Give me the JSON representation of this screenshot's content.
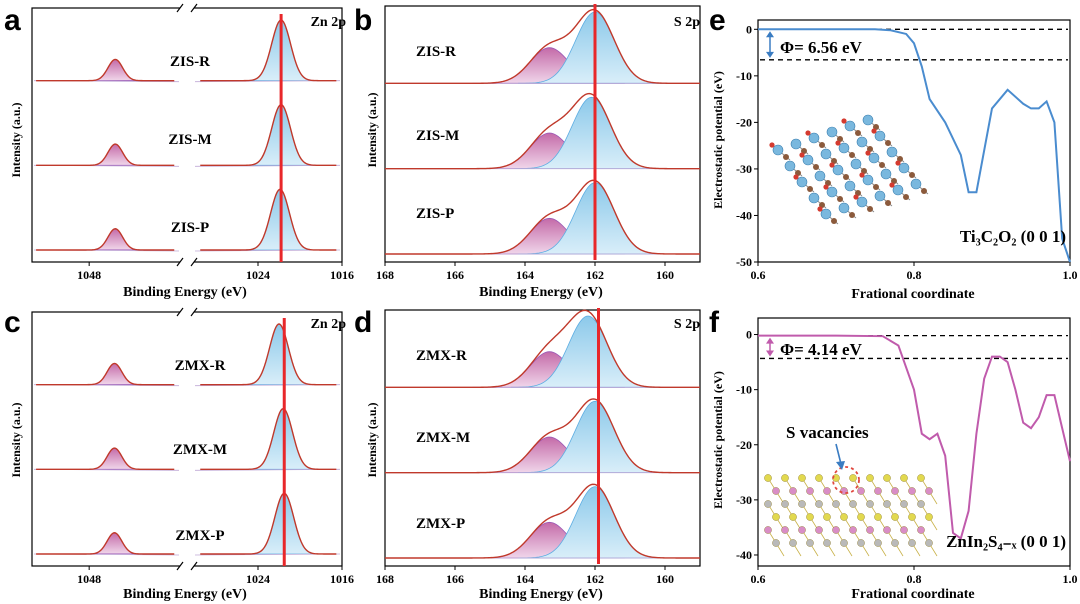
{
  "panels": {
    "a": {
      "label": "a",
      "corner": "Zn 2p",
      "samples": [
        "ZIS-R",
        "ZIS-M",
        "ZIS-P"
      ]
    },
    "b": {
      "label": "b",
      "corner": "S 2p",
      "samples": [
        "ZIS-R",
        "ZIS-M",
        "ZIS-P"
      ]
    },
    "c": {
      "label": "c",
      "corner": "Zn 2p",
      "samples": [
        "ZMX-R",
        "ZMX-M",
        "ZMX-P"
      ]
    },
    "d": {
      "label": "d",
      "corner": "S 2p",
      "samples": [
        "ZMX-R",
        "ZMX-M",
        "ZMX-P"
      ]
    },
    "e": {
      "label": "e"
    },
    "f": {
      "label": "f"
    }
  },
  "xps_axes": {
    "ylabel": "Intensity (a.u.)",
    "xlabel": "Binding Energy (eV)",
    "zn_ticks": [
      "1048",
      "1024",
      "1016"
    ],
    "s_ticks": [
      "168",
      "166",
      "164",
      "162",
      "160"
    ]
  },
  "potential_axes": {
    "ylabel": "Electrostatic potential (eV)",
    "xlabel": "Frational coordinate",
    "xticks": [
      "0.6",
      "0.8",
      "1.0"
    ],
    "yticks": [
      "0",
      "-10",
      "-20",
      "-30",
      "-40",
      "-50"
    ]
  },
  "annotations": {
    "e_phi": "Φ= 6.56 eV",
    "f_phi": "Φ= 4.14 eV",
    "e_struct": "Ti₃C₂O₂ (0 0 1)",
    "f_struct": "ZnIn₂S₄₋ₓ (0 0 1)",
    "s_vacancies": "S vacancies"
  },
  "colors": {
    "fit_line": "#c0392b",
    "reference_line": "#e8272a",
    "zn_main_fill": "#7ec4e6",
    "zn_sat_fill": "#c46aa8",
    "e_curve": "#4a8ccf",
    "f_curve": "#c05bac",
    "phi_arrow_e": "#3a7cc2",
    "phi_arrow_f": "#c05bac"
  },
  "chart_data": [
    {
      "type": "line",
      "panel": "a",
      "title": "Zn 2p",
      "xlabel": "Binding Energy (eV)",
      "ylabel": "Intensity (a.u.)",
      "x_reversed": true,
      "x_break": true,
      "xlim_left": [
        1055,
        1037
      ],
      "xlim_right": [
        1030,
        1016
      ],
      "reference_line_eV": 1021.8,
      "series": [
        {
          "name": "ZIS-R",
          "peaks": [
            {
              "center": 1044.8,
              "height": 0.35
            },
            {
              "center": 1021.8,
              "height": 1.0
            }
          ]
        },
        {
          "name": "ZIS-M",
          "peaks": [
            {
              "center": 1044.8,
              "height": 0.35
            },
            {
              "center": 1021.8,
              "height": 1.0
            }
          ]
        },
        {
          "name": "ZIS-P",
          "peaks": [
            {
              "center": 1044.8,
              "height": 0.35
            },
            {
              "center": 1021.9,
              "height": 1.0
            }
          ]
        }
      ]
    },
    {
      "type": "line",
      "panel": "b",
      "title": "S 2p",
      "xlabel": "Binding Energy (eV)",
      "ylabel": "Intensity (a.u.)",
      "x_reversed": true,
      "xlim": [
        168,
        159
      ],
      "reference_line_eV": 162.0,
      "series": [
        {
          "name": "ZIS-R",
          "peaks": [
            {
              "center": 163.3,
              "height": 0.5
            },
            {
              "center": 162.0,
              "height": 1.0
            }
          ]
        },
        {
          "name": "ZIS-M",
          "peaks": [
            {
              "center": 163.3,
              "height": 0.5
            },
            {
              "center": 162.1,
              "height": 1.0
            }
          ]
        },
        {
          "name": "ZIS-P",
          "peaks": [
            {
              "center": 163.3,
              "height": 0.5
            },
            {
              "center": 162.0,
              "height": 1.0
            }
          ]
        }
      ]
    },
    {
      "type": "line",
      "panel": "c",
      "title": "Zn 2p",
      "xlabel": "Binding Energy (eV)",
      "ylabel": "Intensity (a.u.)",
      "x_reversed": true,
      "x_break": true,
      "xlim_left": [
        1055,
        1037
      ],
      "xlim_right": [
        1030,
        1016
      ],
      "reference_line_eV": 1021.5,
      "series": [
        {
          "name": "ZMX-R",
          "peaks": [
            {
              "center": 1044.9,
              "height": 0.35
            },
            {
              "center": 1022.0,
              "height": 1.0
            }
          ]
        },
        {
          "name": "ZMX-M",
          "peaks": [
            {
              "center": 1044.9,
              "height": 0.35
            },
            {
              "center": 1021.6,
              "height": 1.0
            }
          ]
        },
        {
          "name": "ZMX-P",
          "peaks": [
            {
              "center": 1044.9,
              "height": 0.35
            },
            {
              "center": 1021.5,
              "height": 1.0
            }
          ]
        }
      ]
    },
    {
      "type": "line",
      "panel": "d",
      "title": "S 2p",
      "xlabel": "Binding Energy (eV)",
      "ylabel": "Intensity (a.u.)",
      "x_reversed": true,
      "xlim": [
        168,
        159
      ],
      "reference_line_eV": 161.9,
      "series": [
        {
          "name": "ZMX-R",
          "peaks": [
            {
              "center": 163.3,
              "height": 0.5
            },
            {
              "center": 162.2,
              "height": 1.0
            }
          ]
        },
        {
          "name": "ZMX-M",
          "peaks": [
            {
              "center": 163.3,
              "height": 0.5
            },
            {
              "center": 162.0,
              "height": 1.0
            }
          ]
        },
        {
          "name": "ZMX-P",
          "peaks": [
            {
              "center": 163.3,
              "height": 0.5
            },
            {
              "center": 162.0,
              "height": 1.0
            }
          ]
        }
      ]
    },
    {
      "type": "line",
      "panel": "e",
      "xlabel": "Frational coordinate",
      "ylabel": "Electrostatic potential (eV)",
      "xlim": [
        0.6,
        1.0
      ],
      "ylim": [
        -50,
        2
      ],
      "hlines": [
        0,
        -6.56
      ],
      "x": [
        0.6,
        0.7,
        0.75,
        0.77,
        0.79,
        0.8,
        0.81,
        0.82,
        0.84,
        0.86,
        0.87,
        0.88,
        0.9,
        0.92,
        0.94,
        0.95,
        0.96,
        0.97,
        0.98,
        0.99,
        1.0
      ],
      "y": [
        0,
        0,
        0,
        -0.2,
        -1,
        -3,
        -8,
        -15,
        -20,
        -27,
        -35,
        -35,
        -17,
        -13,
        -16,
        -17,
        -17,
        -15.5,
        -20,
        -45,
        -50
      ]
    },
    {
      "type": "line",
      "panel": "f",
      "xlabel": "Frational coordinate",
      "ylabel": "Electrostatic potential (eV)",
      "xlim": [
        0.6,
        1.0
      ],
      "ylim": [
        -42,
        3
      ],
      "hlines": [
        -0.2,
        -4.34
      ],
      "x": [
        0.6,
        0.7,
        0.76,
        0.78,
        0.8,
        0.81,
        0.82,
        0.83,
        0.84,
        0.85,
        0.86,
        0.87,
        0.88,
        0.89,
        0.9,
        0.91,
        0.92,
        0.93,
        0.94,
        0.95,
        0.96,
        0.97,
        0.98,
        0.99,
        1.0
      ],
      "y": [
        -0.2,
        -0.2,
        -0.3,
        -2,
        -10,
        -18,
        -19,
        -18,
        -22,
        -36,
        -37,
        -32,
        -18,
        -8,
        -4,
        -4,
        -5,
        -10,
        -16,
        -17,
        -15,
        -11,
        -11,
        -17,
        -23
      ]
    }
  ]
}
